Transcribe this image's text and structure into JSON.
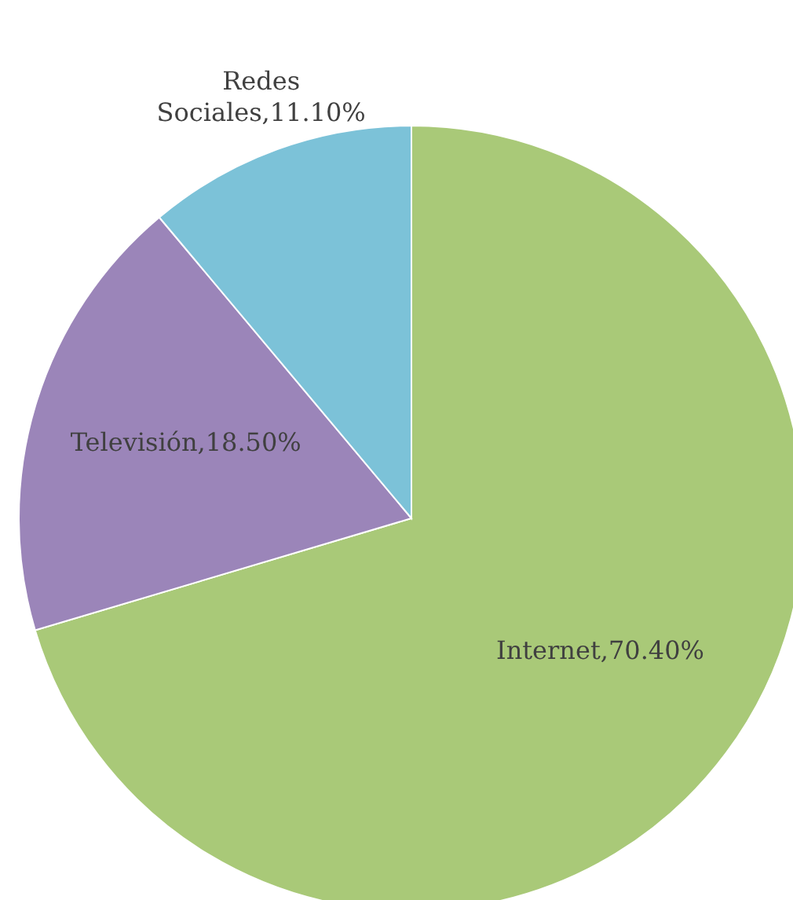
{
  "chart_data": {
    "type": "pie",
    "categories": [
      "Internet",
      "Televisión",
      "Redes Sociales"
    ],
    "values": [
      70.4,
      18.5,
      11.1
    ],
    "colors": [
      "#a9c978",
      "#9b85b9",
      "#7cc2d8"
    ],
    "value_labels": [
      "70.40%",
      "18.50%",
      "11.10%"
    ]
  }
}
